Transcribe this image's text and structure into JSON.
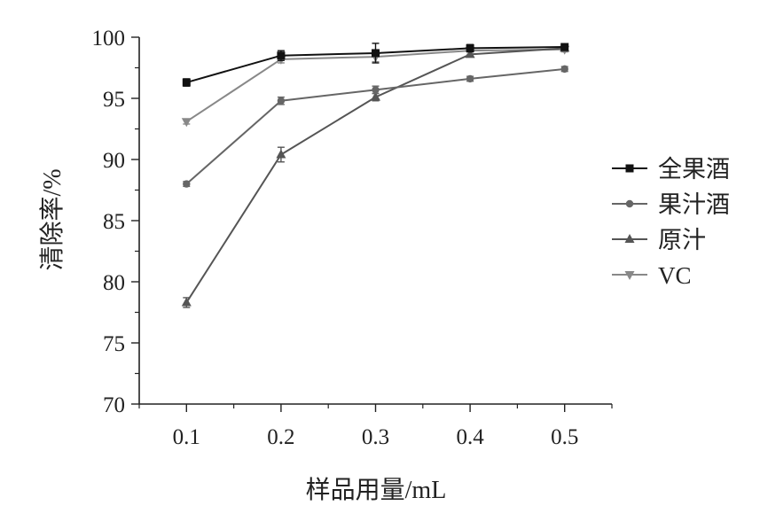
{
  "chart_data": {
    "type": "line",
    "title": "",
    "xlabel": "样品用量/mL",
    "ylabel": "清除率/%",
    "x": [
      0.1,
      0.2,
      0.3,
      0.4,
      0.5
    ],
    "x_tick_labels": [
      "0.1",
      "0.2",
      "0.3",
      "0.4",
      "0.5"
    ],
    "xlim": [
      0.05,
      0.55
    ],
    "ylim": [
      70,
      100
    ],
    "y_ticks": [
      70,
      75,
      80,
      85,
      90,
      95,
      100
    ],
    "y_tick_labels": [
      "70",
      "75",
      "80",
      "85",
      "90",
      "95",
      "100"
    ],
    "grid": false,
    "legend_position": "right",
    "error_bars": true,
    "series": [
      {
        "name": "全果酒",
        "marker": "square",
        "color": "#111111",
        "values": [
          96.3,
          98.5,
          98.7,
          99.1,
          99.2
        ],
        "errors": [
          0.3,
          0.4,
          0.8,
          0.3,
          0.2
        ]
      },
      {
        "name": "果汁酒",
        "marker": "circle",
        "color": "#666666",
        "values": [
          88.0,
          94.8,
          95.7,
          96.6,
          97.4
        ],
        "errors": [
          0.2,
          0.3,
          0.3,
          0.2,
          0.2
        ]
      },
      {
        "name": "原汁",
        "marker": "triangle-up",
        "color": "#555555",
        "values": [
          78.3,
          90.4,
          95.1,
          98.6,
          99.1
        ],
        "errors": [
          0.4,
          0.6,
          0.3,
          0.2,
          0.2
        ]
      },
      {
        "name": "VC",
        "marker": "triangle-down",
        "color": "#888888",
        "values": [
          93.1,
          98.2,
          98.4,
          98.9,
          99.0
        ],
        "errors": [
          0.2,
          0.3,
          0.4,
          0.3,
          0.2
        ]
      }
    ]
  }
}
